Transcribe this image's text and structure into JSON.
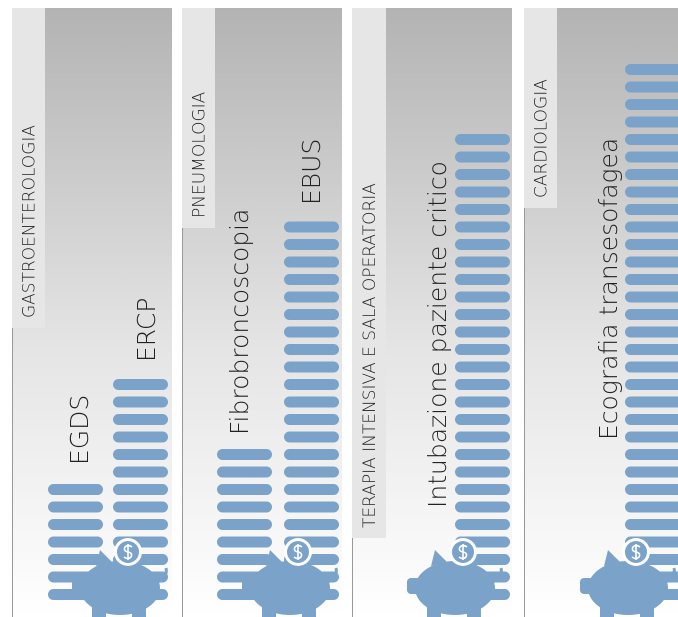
{
  "chart_data": [
    {
      "type": "pictogram",
      "title": "GASTROENTEROLOGIA",
      "categories": [
        "EGDS",
        "ERCP"
      ],
      "values": [
        7,
        13
      ],
      "color": "#7ba3c9"
    },
    {
      "type": "pictogram",
      "title": "PNEUMOLOGIA",
      "categories": [
        "Fibrobroncoscopia",
        "EBUS"
      ],
      "values": [
        9,
        22
      ],
      "color": "#7ba3c9"
    },
    {
      "type": "pictogram",
      "title": "TERAPIA INTENSIVA E SALA OPERATORIA",
      "categories": [
        "Intubazione paziente critico"
      ],
      "values": [
        27
      ],
      "color": "#7ba3c9"
    },
    {
      "type": "pictogram",
      "title": "CARDIOLOGIA",
      "categories": [
        "Ecografia  transesofagea"
      ],
      "values": [
        31
      ],
      "color": "#7ba3c9"
    }
  ]
}
